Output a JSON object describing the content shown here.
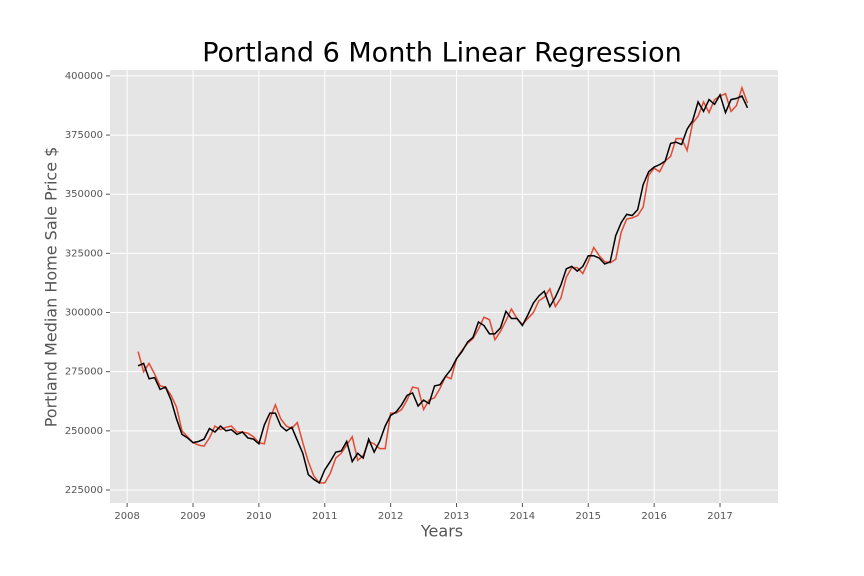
{
  "chart_data": {
    "type": "line",
    "title": "Portland 6 Month Linear Regression",
    "xlabel": "Years",
    "ylabel": "Portland Median Home Sale Price $",
    "x": [
      2008.167,
      2008.25,
      2008.333,
      2008.417,
      2008.5,
      2008.583,
      2008.667,
      2008.75,
      2008.833,
      2008.917,
      2009.0,
      2009.083,
      2009.167,
      2009.25,
      2009.333,
      2009.417,
      2009.5,
      2009.583,
      2009.667,
      2009.75,
      2009.833,
      2009.917,
      2010.0,
      2010.083,
      2010.167,
      2010.25,
      2010.333,
      2010.417,
      2010.5,
      2010.583,
      2010.667,
      2010.75,
      2010.833,
      2010.917,
      2011.0,
      2011.083,
      2011.167,
      2011.25,
      2011.333,
      2011.417,
      2011.5,
      2011.583,
      2011.667,
      2011.75,
      2011.833,
      2011.917,
      2012.0,
      2012.083,
      2012.167,
      2012.25,
      2012.333,
      2012.417,
      2012.5,
      2012.583,
      2012.667,
      2012.75,
      2012.833,
      2012.917,
      2013.0,
      2013.083,
      2013.167,
      2013.25,
      2013.333,
      2013.417,
      2013.5,
      2013.583,
      2013.667,
      2013.75,
      2013.833,
      2013.917,
      2014.0,
      2014.083,
      2014.167,
      2014.25,
      2014.333,
      2014.417,
      2014.5,
      2014.583,
      2014.667,
      2014.75,
      2014.833,
      2014.917,
      2015.0,
      2015.083,
      2015.167,
      2015.25,
      2015.333,
      2015.417,
      2015.5,
      2015.583,
      2015.667,
      2015.75,
      2015.833,
      2015.917,
      2016.0,
      2016.083,
      2016.167,
      2016.25,
      2016.333,
      2016.417,
      2016.5,
      2016.583,
      2016.667,
      2016.75,
      2016.833,
      2016.917,
      2017.0,
      2017.083,
      2017.167,
      2017.25,
      2017.333,
      2017.417
    ],
    "series": [
      {
        "color": "#e24a33",
        "values": [
          283500,
          275000,
          278500,
          274000,
          269000,
          268500,
          265000,
          260000,
          250000,
          247500,
          245000,
          244000,
          243500,
          247000,
          252000,
          250500,
          251500,
          252000,
          249500,
          249500,
          249000,
          247500,
          245000,
          244500,
          255000,
          261000,
          255000,
          252000,
          251000,
          253500,
          245000,
          237000,
          231000,
          228000,
          228000,
          232000,
          238500,
          240500,
          244000,
          247500,
          237500,
          239500,
          245500,
          244500,
          242500,
          242500,
          257500,
          257500,
          259000,
          263000,
          268500,
          268000,
          259000,
          263000,
          264000,
          268000,
          273000,
          272000,
          280500,
          284000,
          287000,
          289000,
          293000,
          298000,
          297000,
          288500,
          292000,
          296500,
          301500,
          297500,
          295000,
          297500,
          300000,
          305000,
          306500,
          310000,
          302500,
          306000,
          315000,
          319000,
          319000,
          316500,
          321500,
          327500,
          324000,
          321500,
          321000,
          322500,
          334000,
          339500,
          340000,
          341000,
          344500,
          358000,
          361000,
          359500,
          364000,
          366000,
          373500,
          373500,
          368500,
          380000,
          383000,
          389000,
          384500,
          390000,
          391500,
          392500,
          385000,
          387500,
          395000,
          388500
        ]
      },
      {
        "color": "#000000",
        "values": [
          277500,
          278500,
          272000,
          272500,
          267500,
          268500,
          263000,
          255000,
          248500,
          247000,
          245000,
          245500,
          246500,
          251000,
          249500,
          252000,
          250000,
          250500,
          248500,
          249500,
          247000,
          246500,
          244500,
          252500,
          257500,
          257500,
          252000,
          250000,
          251500,
          246000,
          240500,
          231500,
          229500,
          228000,
          233500,
          237000,
          241000,
          241500,
          245500,
          237000,
          240500,
          238500,
          246500,
          241000,
          245500,
          252000,
          256500,
          258000,
          261000,
          265000,
          266000,
          260500,
          263000,
          261500,
          269000,
          269500,
          273000,
          276000,
          280500,
          283500,
          287500,
          289500,
          296000,
          294500,
          291000,
          291000,
          293500,
          300500,
          297500,
          297500,
          294500,
          299000,
          304000,
          307000,
          309000,
          302500,
          306500,
          311500,
          318500,
          319500,
          317500,
          319500,
          324000,
          324000,
          323000,
          320500,
          321500,
          332500,
          338000,
          341500,
          341000,
          343500,
          354000,
          359500,
          361500,
          362500,
          364000,
          371500,
          372000,
          371000,
          377500,
          381000,
          389000,
          385000,
          390000,
          388000,
          392000,
          384500,
          390000,
          390500,
          391500,
          386500
        ]
      }
    ],
    "xlim": [
      2007.74,
      2017.88
    ],
    "xticks": [
      2008,
      2009,
      2010,
      2011,
      2012,
      2013,
      2014,
      2015,
      2016,
      2017
    ],
    "ylim": [
      219500,
      402500
    ],
    "yticks": [
      225000,
      250000,
      275000,
      300000,
      325000,
      350000,
      375000,
      400000
    ],
    "grid": true
  }
}
